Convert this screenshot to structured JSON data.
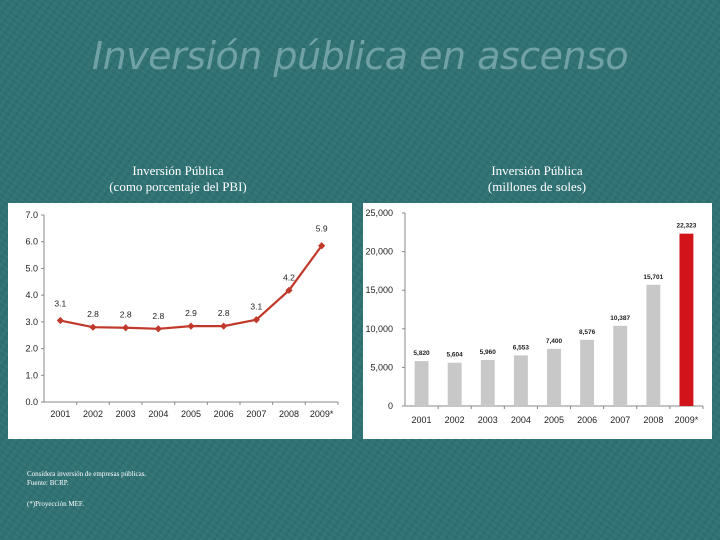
{
  "slide_title": "Inversión pública en ascenso",
  "notes": {
    "line1": "Considera inversión de empresas públicas.",
    "line2": "Fuente: BCRP.",
    "line3": "(*)Proyección MEF."
  },
  "chart_data": [
    {
      "type": "line",
      "title": "Inversión Pública",
      "subtitle": "(como porcentaje del PBI)",
      "categories": [
        "2001",
        "2002",
        "2003",
        "2004",
        "2005",
        "2006",
        "2007",
        "2008",
        "2009*"
      ],
      "values": [
        3.1,
        2.8,
        2.8,
        2.8,
        2.9,
        2.8,
        3.1,
        4.2,
        5.9
      ],
      "y_plot_values": [
        3.05,
        2.8,
        2.78,
        2.74,
        2.84,
        2.84,
        3.08,
        4.18,
        5.85
      ],
      "labels": [
        "3.1",
        "2.8",
        "2.8",
        "2.8",
        "2.9",
        "2.8",
        "3.1",
        "4.2",
        "5.9"
      ],
      "yticks": [
        "0.0",
        "1.0",
        "2.0",
        "3.0",
        "4.0",
        "5.0",
        "6.0",
        "7.0"
      ],
      "ylim": [
        0,
        7
      ],
      "color": "#c0392b",
      "grid": false
    },
    {
      "type": "bar",
      "title": "Inversión Pública",
      "subtitle": "(millones de soles)",
      "categories": [
        "2001",
        "2002",
        "2003",
        "2004",
        "2005",
        "2006",
        "2007",
        "2008",
        "2009*"
      ],
      "values": [
        5820,
        5604,
        5960,
        6553,
        7400,
        8576,
        10387,
        15701,
        22323
      ],
      "labels": [
        "5,820",
        "5,604",
        "5,960",
        "6,553",
        "7,400",
        "8,576",
        "10,387",
        "15,701",
        "22,323"
      ],
      "yticks": [
        "0",
        "5,000",
        "10,000",
        "15,000",
        "20,000",
        "25,000"
      ],
      "ylim": [
        0,
        25000
      ],
      "bar_color": "#c8c8c8",
      "highlight_color": "#d0141a",
      "highlight_index": 8,
      "grid": false
    }
  ]
}
